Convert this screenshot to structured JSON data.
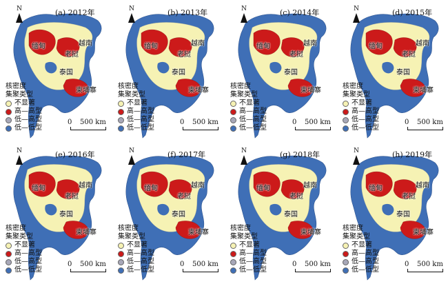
{
  "panels": [
    {
      "title": "(a) 2012年"
    },
    {
      "title": "(b) 2013年"
    },
    {
      "title": "(c) 2014年"
    },
    {
      "title": "(d) 2015年"
    },
    {
      "title": "(e) 2016年"
    },
    {
      "title": "(f) 2017年"
    },
    {
      "title": "(g) 2018年"
    },
    {
      "title": "(h) 2019年"
    }
  ],
  "map_labels": {
    "north": "N",
    "myanmar": "缅甸",
    "laos": "老挝",
    "vietnam": "越南",
    "thailand": "泰国",
    "cambodia": "柬埔寨"
  },
  "legend": {
    "title_line1": "核密度",
    "title_line2": "集聚类型",
    "items": [
      {
        "label": "不显著",
        "color": "#f6f2b4"
      },
      {
        "label": "高—高型",
        "color": "#cc1a1a"
      },
      {
        "label": "低—高型",
        "color": "#a8a8b8"
      },
      {
        "label": "低—低型",
        "color": "#3f6fb6"
      }
    ]
  },
  "scale": {
    "zero": "0",
    "distance": "500 km"
  }
}
